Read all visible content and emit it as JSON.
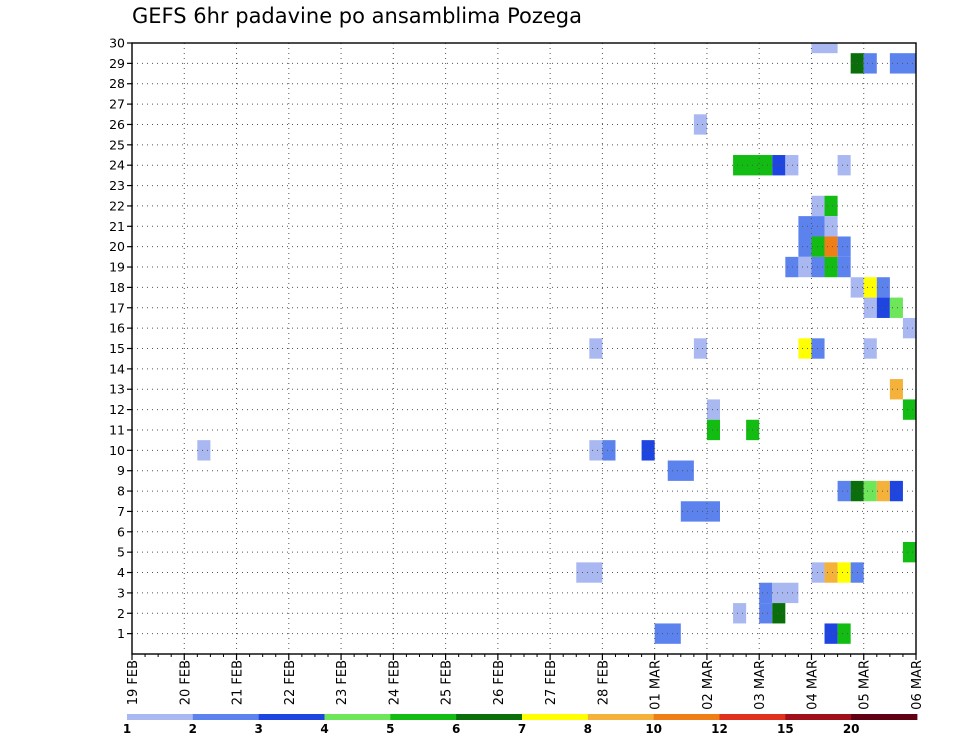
{
  "chart_data": {
    "type": "heatmap",
    "title": "GEFS 6hr padavine po ansamblima Pozega",
    "xlabel": "",
    "ylabel": "",
    "x_tick_labels": [
      "19 FEB",
      "20 FEB",
      "21 FEB",
      "22 FEB",
      "23 FEB",
      "24 FEB",
      "25 FEB",
      "26 FEB",
      "27 FEB",
      "28 FEB",
      "01 MAR",
      "02 MAR",
      "03 MAR",
      "04 MAR",
      "05 MAR",
      "06 MAR"
    ],
    "y_tick_labels": [
      "1",
      "2",
      "3",
      "4",
      "5",
      "6",
      "7",
      "8",
      "9",
      "10",
      "11",
      "12",
      "13",
      "14",
      "15",
      "16",
      "17",
      "18",
      "19",
      "20",
      "21",
      "22",
      "23",
      "24",
      "25",
      "26",
      "27",
      "28",
      "29",
      "30"
    ],
    "ylim": [
      0,
      30
    ],
    "time_step": "6hr",
    "grid": true,
    "colorbar": {
      "position": "bottom",
      "labels": [
        "1",
        "2",
        "3",
        "4",
        "5",
        "6",
        "7",
        "8",
        "10",
        "12",
        "15",
        "20"
      ],
      "bin_edges": [
        1,
        2,
        3,
        4,
        5,
        6,
        7,
        8,
        10,
        12,
        15,
        20
      ],
      "colors": [
        "#aab8f2",
        "#5c82ee",
        "#1f45e0",
        "#6ee65a",
        "#12bc12",
        "#0a6e0a",
        "#ffff00",
        "#f5b23a",
        "#f07e16",
        "#e0301e",
        "#a0101a",
        "#600012"
      ]
    },
    "cells": [
      {
        "member": 30,
        "start": "04 MAR 00Z",
        "end": "04 MAR 12Z",
        "bin": 1
      },
      {
        "member": 29,
        "start": "04 MAR 18Z",
        "end": "05 MAR 00Z",
        "bin": 6
      },
      {
        "member": 29,
        "start": "05 MAR 00Z",
        "end": "05 MAR 06Z",
        "bin": 2
      },
      {
        "member": 29,
        "start": "05 MAR 12Z",
        "end": "06 MAR 00Z",
        "bin": 2
      },
      {
        "member": 26,
        "start": "01 MAR 18Z",
        "end": "02 MAR 00Z",
        "bin": 1
      },
      {
        "member": 24,
        "start": "02 MAR 12Z",
        "end": "03 MAR 06Z",
        "bin": 5
      },
      {
        "member": 24,
        "start": "03 MAR 06Z",
        "end": "03 MAR 12Z",
        "bin": 3
      },
      {
        "member": 24,
        "start": "03 MAR 12Z",
        "end": "03 MAR 18Z",
        "bin": 1
      },
      {
        "member": 24,
        "start": "04 MAR 12Z",
        "end": "04 MAR 18Z",
        "bin": 1
      },
      {
        "member": 22,
        "start": "04 MAR 00Z",
        "end": "04 MAR 06Z",
        "bin": 1
      },
      {
        "member": 22,
        "start": "04 MAR 06Z",
        "end": "04 MAR 12Z",
        "bin": 5
      },
      {
        "member": 21,
        "start": "03 MAR 18Z",
        "end": "04 MAR 06Z",
        "bin": 2
      },
      {
        "member": 21,
        "start": "04 MAR 06Z",
        "end": "04 MAR 12Z",
        "bin": 1
      },
      {
        "member": 20,
        "start": "03 MAR 18Z",
        "end": "04 MAR 00Z",
        "bin": 2
      },
      {
        "member": 20,
        "start": "04 MAR 00Z",
        "end": "04 MAR 06Z",
        "bin": 5
      },
      {
        "member": 20,
        "start": "04 MAR 06Z",
        "end": "04 MAR 12Z",
        "bin": 10
      },
      {
        "member": 20,
        "start": "04 MAR 12Z",
        "end": "04 MAR 18Z",
        "bin": 2
      },
      {
        "member": 19,
        "start": "03 MAR 12Z",
        "end": "03 MAR 18Z",
        "bin": 2
      },
      {
        "member": 19,
        "start": "03 MAR 18Z",
        "end": "04 MAR 00Z",
        "bin": 1
      },
      {
        "member": 19,
        "start": "04 MAR 00Z",
        "end": "04 MAR 06Z",
        "bin": 2
      },
      {
        "member": 19,
        "start": "04 MAR 06Z",
        "end": "04 MAR 12Z",
        "bin": 5
      },
      {
        "member": 19,
        "start": "04 MAR 12Z",
        "end": "04 MAR 18Z",
        "bin": 2
      },
      {
        "member": 18,
        "start": "04 MAR 18Z",
        "end": "05 MAR 00Z",
        "bin": 1
      },
      {
        "member": 18,
        "start": "05 MAR 00Z",
        "end": "05 MAR 06Z",
        "bin": 7
      },
      {
        "member": 18,
        "start": "05 MAR 06Z",
        "end": "05 MAR 12Z",
        "bin": 2
      },
      {
        "member": 17,
        "start": "05 MAR 00Z",
        "end": "05 MAR 06Z",
        "bin": 1
      },
      {
        "member": 17,
        "start": "05 MAR 06Z",
        "end": "05 MAR 12Z",
        "bin": 3
      },
      {
        "member": 17,
        "start": "05 MAR 12Z",
        "end": "05 MAR 18Z",
        "bin": 4
      },
      {
        "member": 16,
        "start": "05 MAR 18Z",
        "end": "06 MAR 00Z",
        "bin": 1
      },
      {
        "member": 15,
        "start": "27 FEB 18Z",
        "end": "28 FEB 00Z",
        "bin": 1
      },
      {
        "member": 15,
        "start": "01 MAR 18Z",
        "end": "02 MAR 00Z",
        "bin": 1
      },
      {
        "member": 15,
        "start": "03 MAR 18Z",
        "end": "04 MAR 00Z",
        "bin": 7
      },
      {
        "member": 15,
        "start": "04 MAR 00Z",
        "end": "04 MAR 06Z",
        "bin": 2
      },
      {
        "member": 15,
        "start": "05 MAR 00Z",
        "end": "05 MAR 06Z",
        "bin": 1
      },
      {
        "member": 13,
        "start": "05 MAR 12Z",
        "end": "05 MAR 18Z",
        "bin": 8
      },
      {
        "member": 12,
        "start": "02 MAR 00Z",
        "end": "02 MAR 06Z",
        "bin": 1
      },
      {
        "member": 12,
        "start": "05 MAR 18Z",
        "end": "06 MAR 00Z",
        "bin": 5
      },
      {
        "member": 11,
        "start": "02 MAR 00Z",
        "end": "02 MAR 06Z",
        "bin": 5
      },
      {
        "member": 11,
        "start": "02 MAR 18Z",
        "end": "03 MAR 00Z",
        "bin": 5
      },
      {
        "member": 10,
        "start": "20 FEB 06Z",
        "end": "20 FEB 12Z",
        "bin": 1
      },
      {
        "member": 10,
        "start": "27 FEB 18Z",
        "end": "28 FEB 00Z",
        "bin": 1
      },
      {
        "member": 10,
        "start": "28 FEB 00Z",
        "end": "28 FEB 06Z",
        "bin": 2
      },
      {
        "member": 10,
        "start": "28 FEB 18Z",
        "end": "01 MAR 00Z",
        "bin": 3
      },
      {
        "member": 9,
        "start": "01 MAR 06Z",
        "end": "01 MAR 18Z",
        "bin": 2
      },
      {
        "member": 8,
        "start": "04 MAR 12Z",
        "end": "04 MAR 18Z",
        "bin": 2
      },
      {
        "member": 8,
        "start": "04 MAR 18Z",
        "end": "05 MAR 00Z",
        "bin": 6
      },
      {
        "member": 8,
        "start": "05 MAR 00Z",
        "end": "05 MAR 06Z",
        "bin": 4
      },
      {
        "member": 8,
        "start": "05 MAR 06Z",
        "end": "05 MAR 12Z",
        "bin": 8
      },
      {
        "member": 8,
        "start": "05 MAR 12Z",
        "end": "05 MAR 18Z",
        "bin": 3
      },
      {
        "member": 7,
        "start": "01 MAR 12Z",
        "end": "02 MAR 06Z",
        "bin": 2
      },
      {
        "member": 5,
        "start": "05 MAR 18Z",
        "end": "06 MAR 00Z",
        "bin": 5
      },
      {
        "member": 4,
        "start": "27 FEB 12Z",
        "end": "28 FEB 00Z",
        "bin": 1
      },
      {
        "member": 4,
        "start": "04 MAR 00Z",
        "end": "04 MAR 06Z",
        "bin": 1
      },
      {
        "member": 4,
        "start": "04 MAR 06Z",
        "end": "04 MAR 12Z",
        "bin": 8
      },
      {
        "member": 4,
        "start": "04 MAR 12Z",
        "end": "04 MAR 18Z",
        "bin": 7
      },
      {
        "member": 4,
        "start": "04 MAR 18Z",
        "end": "05 MAR 00Z",
        "bin": 2
      },
      {
        "member": 3,
        "start": "03 MAR 00Z",
        "end": "03 MAR 06Z",
        "bin": 2
      },
      {
        "member": 3,
        "start": "03 MAR 06Z",
        "end": "03 MAR 18Z",
        "bin": 1
      },
      {
        "member": 2,
        "start": "02 MAR 12Z",
        "end": "02 MAR 18Z",
        "bin": 1
      },
      {
        "member": 2,
        "start": "03 MAR 00Z",
        "end": "03 MAR 06Z",
        "bin": 2
      },
      {
        "member": 2,
        "start": "03 MAR 06Z",
        "end": "03 MAR 12Z",
        "bin": 6
      },
      {
        "member": 1,
        "start": "01 MAR 00Z",
        "end": "01 MAR 12Z",
        "bin": 2
      },
      {
        "member": 1,
        "start": "04 MAR 06Z",
        "end": "04 MAR 12Z",
        "bin": 3
      },
      {
        "member": 1,
        "start": "04 MAR 12Z",
        "end": "04 MAR 18Z",
        "bin": 5
      }
    ]
  }
}
